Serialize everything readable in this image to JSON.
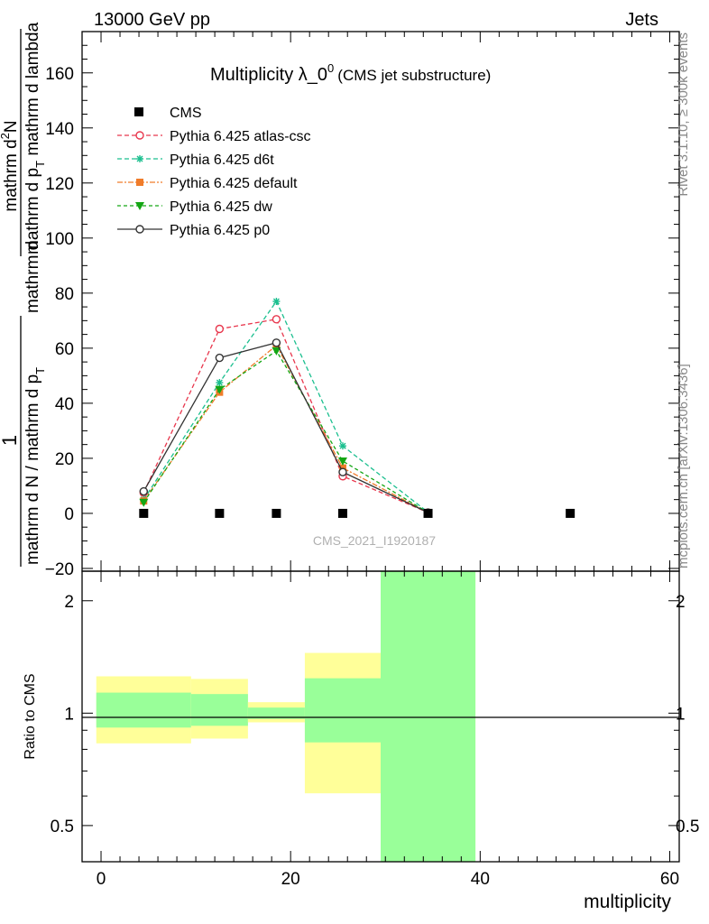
{
  "header": {
    "energy_label": "13000 GeV pp",
    "category_label": "Jets"
  },
  "side_labels": {
    "rivet": "Rivet 3.1.10, ≥ 300k events",
    "mcplots": "mcplots.cern.ch [arXiv:1306.3436]"
  },
  "chart_data": {
    "type": "line",
    "title_main": "Multiplicity λ_0",
    "title_sup": "0",
    "title_sub": "(CMS jet substructure)",
    "watermark": "CMS_2021_I1920187",
    "xlabel": "multiplicity",
    "ylabel_main": {
      "fraction_top": "1",
      "fraction_bottom": "mathrm d N / mathrm d p",
      "fraction_bottom_sub": "T",
      "mid": "mathrm d",
      "second_top": "mathrm d",
      "second_top_sup": "2",
      "second_top_rest": "N",
      "second_bottom": "mathrm d p",
      "second_bottom_sub": "T",
      "second_bottom_rest": " mathrm d lambda"
    },
    "ylabel_ratio": "Ratio to CMS",
    "xlim": [
      -2,
      61
    ],
    "ylim_main": [
      -21,
      175
    ],
    "ylim_ratio": [
      0.4,
      2.4
    ],
    "ratio_scale": "log",
    "x_ticks": [
      0,
      20,
      40,
      60
    ],
    "y_ticks_main": [
      -20,
      0,
      20,
      40,
      60,
      80,
      100,
      120,
      140,
      160
    ],
    "y_ticks_ratio": [
      0.5,
      1,
      2
    ],
    "legend_position": "top-left",
    "data_series": {
      "name": "CMS",
      "x": [
        4.5,
        12.5,
        18.5,
        25.5,
        34.5,
        49.5
      ],
      "y": [
        0,
        0,
        0,
        0,
        0,
        0
      ],
      "color": "#000000"
    },
    "series": [
      {
        "name": "Pythia 6.425 atlas-csc",
        "color": "#e8374d",
        "marker": "open-circle",
        "dash": "5,3",
        "x": [
          4.5,
          12.5,
          18.5,
          25.5,
          34.5
        ],
        "y": [
          7.5,
          67,
          70.5,
          13.5,
          0.3
        ]
      },
      {
        "name": "Pythia 6.425 d6t",
        "color": "#1bbf8f",
        "marker": "asterisk",
        "dash": "5,3",
        "x": [
          4.5,
          12.5,
          18.5,
          25.5,
          34.5
        ],
        "y": [
          5,
          47.5,
          77,
          24.5,
          0.4
        ]
      },
      {
        "name": "Pythia 6.425 default",
        "color": "#f07c2a",
        "marker": "filled-square",
        "dash": "6,2,2,2",
        "x": [
          4.5,
          12.5,
          18.5,
          25.5,
          34.5
        ],
        "y": [
          4.5,
          44,
          61,
          16.5,
          0.3
        ]
      },
      {
        "name": "Pythia 6.425 dw",
        "color": "#14a614",
        "marker": "filled-triangle-down",
        "dash": "4,3",
        "x": [
          4.5,
          12.5,
          18.5,
          25.5,
          34.5
        ],
        "y": [
          4,
          45,
          59,
          19,
          0.3
        ]
      },
      {
        "name": "Pythia 6.425 p0",
        "color": "#333333",
        "marker": "open-circle",
        "dash": "",
        "x": [
          4.5,
          12.5,
          18.5,
          25.5,
          34.5
        ],
        "y": [
          8,
          56.5,
          62,
          15,
          0.3
        ]
      }
    ],
    "ratio_bands": [
      {
        "x": [
          -0.5,
          9.5
        ],
        "inner": [
          0.915,
          1.135
        ],
        "outer": [
          0.83,
          1.255
        ]
      },
      {
        "x": [
          9.5,
          15.5
        ],
        "inner": [
          0.925,
          1.125
        ],
        "outer": [
          0.855,
          1.235
        ]
      },
      {
        "x": [
          15.5,
          21.5
        ],
        "inner": [
          0.965,
          1.035
        ],
        "outer": [
          0.945,
          1.07
        ]
      },
      {
        "x": [
          21.5,
          29.5
        ],
        "inner": [
          0.835,
          1.24
        ],
        "outer": [
          0.61,
          1.45
        ]
      },
      {
        "x": [
          29.5,
          39.5
        ],
        "inner": [
          0.4,
          2.4
        ],
        "outer": [
          0.4,
          2.4
        ]
      }
    ],
    "band_colors": {
      "inner": "#99ff99",
      "outer": "#ffff99"
    }
  }
}
